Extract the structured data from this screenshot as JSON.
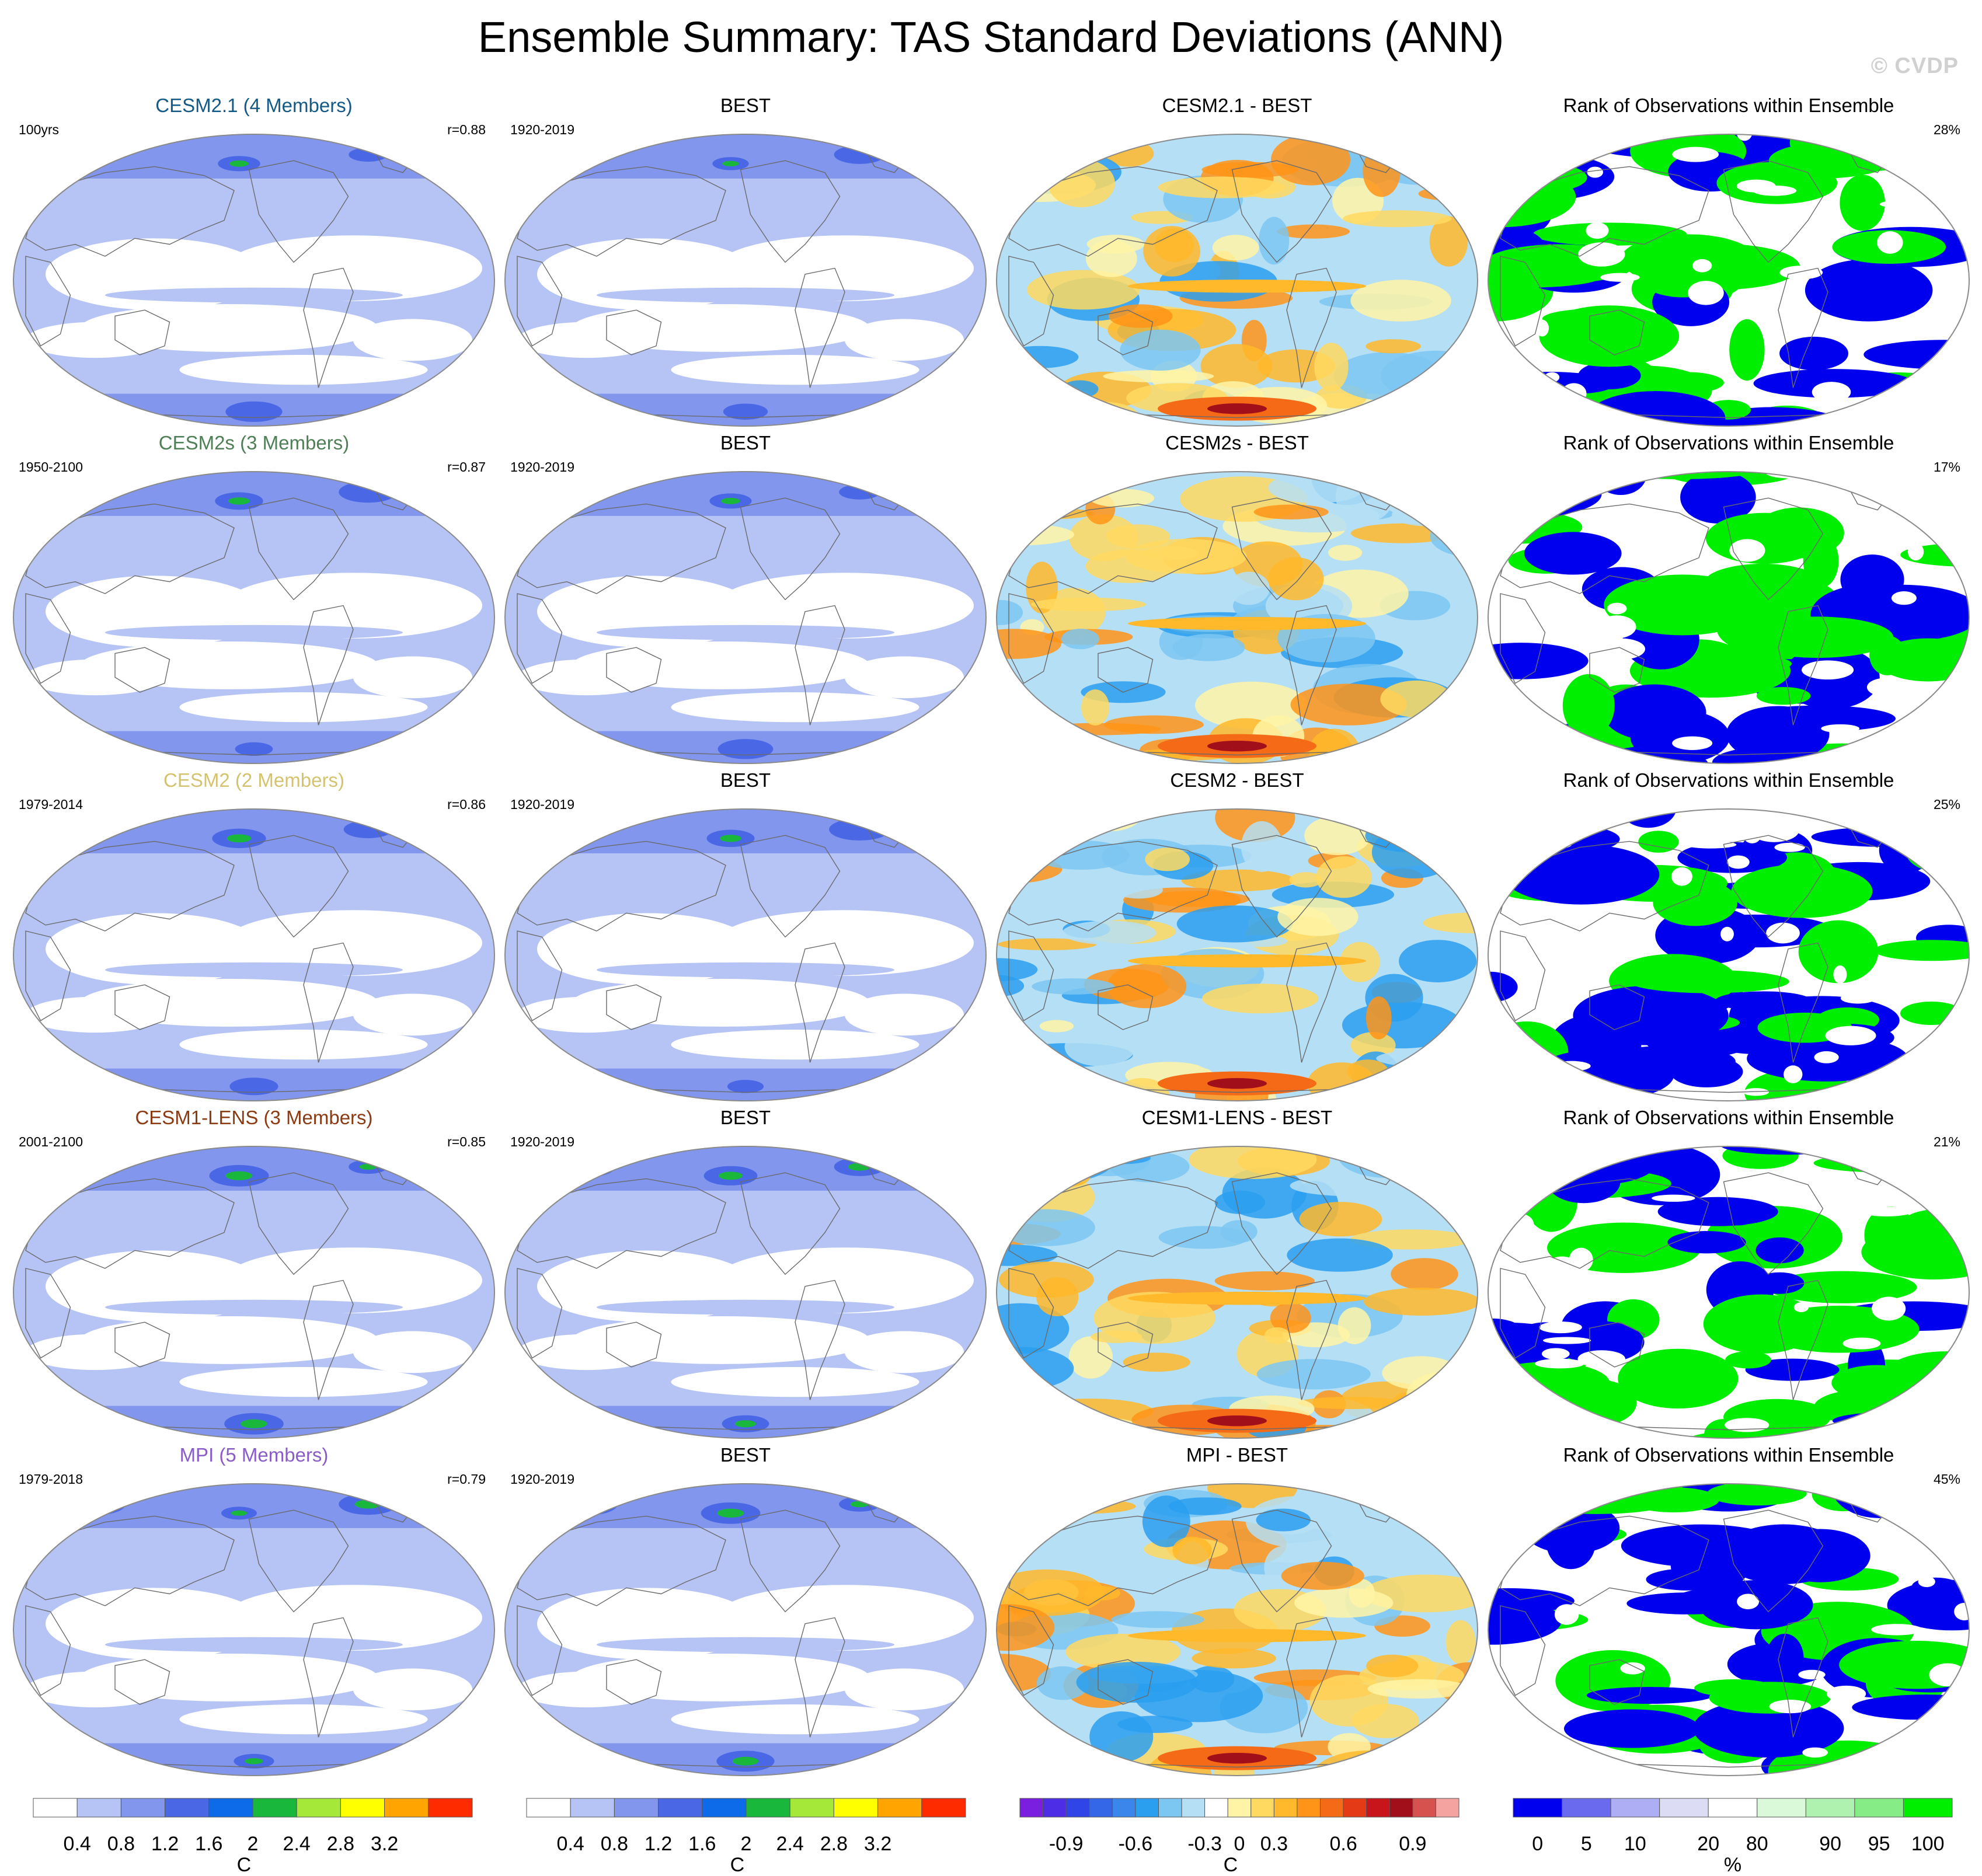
{
  "title": "Ensemble Summary: TAS Standard Deviations (ANN)",
  "watermark": "© CVDP",
  "colors": {
    "std_levels": [
      "#ffffff",
      "#b6c4f5",
      "#8296ee",
      "#4a68e6",
      "#0d6bea",
      "#19b83c",
      "#a6e83a",
      "#ffff00",
      "#ffa400",
      "#ff2b00"
    ],
    "diff_levels": [
      "#7a1fe0",
      "#4d2ee6",
      "#2f45e8",
      "#3466e8",
      "#3b86ea",
      "#2a9ff0",
      "#7cc7f2",
      "#b5dff5",
      "#ffffff",
      "#fff4a6",
      "#ffd960",
      "#ffb92a",
      "#ff9418",
      "#f56a16",
      "#e43a15",
      "#c8151c",
      "#a10f1a",
      "#d6524e",
      "#f5a3a0"
    ],
    "rank_levels": [
      "#0000ee",
      "#6a6aee",
      "#aeaef5",
      "#dcdcf5",
      "#ffffff",
      "#d9f9d9",
      "#aff2af",
      "#86ec86",
      "#00ee00"
    ]
  },
  "rows": [
    {
      "model": {
        "title": "CESM2.1 (4 Members)",
        "title_color": "#145a86",
        "years": "100yrs",
        "r": "r=0.88"
      },
      "obs": {
        "title": "BEST",
        "years": "1920-2019"
      },
      "diff": {
        "title": "CESM2.1 - BEST"
      },
      "rank": {
        "title": "Rank of Observations within Ensemble",
        "pct": "28%"
      }
    },
    {
      "model": {
        "title": "CESM2s (3 Members)",
        "title_color": "#4f7f56",
        "years": "1950-2100",
        "r": "r=0.87"
      },
      "obs": {
        "title": "BEST",
        "years": "1920-2019"
      },
      "diff": {
        "title": "CESM2s - BEST"
      },
      "rank": {
        "title": "Rank of Observations within Ensemble",
        "pct": "17%"
      }
    },
    {
      "model": {
        "title": "CESM2 (2 Members)",
        "title_color": "#d4c36e",
        "years": "1979-2014",
        "r": "r=0.86"
      },
      "obs": {
        "title": "BEST",
        "years": "1920-2019"
      },
      "diff": {
        "title": "CESM2 - BEST"
      },
      "rank": {
        "title": "Rank of Observations within Ensemble",
        "pct": "25%"
      }
    },
    {
      "model": {
        "title": "CESM1-LENS (3 Members)",
        "title_color": "#8b3a12",
        "years": "2001-2100",
        "r": "r=0.85"
      },
      "obs": {
        "title": "BEST",
        "years": "1920-2019"
      },
      "diff": {
        "title": "CESM1-LENS - BEST"
      },
      "rank": {
        "title": "Rank of Observations within Ensemble",
        "pct": "21%"
      }
    },
    {
      "model": {
        "title": "MPI (5 Members)",
        "title_color": "#8a5cc8",
        "years": "1979-2018",
        "r": "r=0.79"
      },
      "obs": {
        "title": "BEST",
        "years": "1920-2019"
      },
      "diff": {
        "title": "MPI - BEST"
      },
      "rank": {
        "title": "Rank of Observations within Ensemble",
        "pct": "45%"
      }
    }
  ],
  "colorbars": [
    {
      "kind": "std",
      "labels": [
        "0.4",
        "0.8",
        "1.2",
        "1.6",
        "2",
        "2.4",
        "2.8",
        "3.2"
      ],
      "unit": "C"
    },
    {
      "kind": "std",
      "labels": [
        "0.4",
        "0.8",
        "1.2",
        "1.6",
        "2",
        "2.4",
        "2.8",
        "3.2"
      ],
      "unit": "C"
    },
    {
      "kind": "diff",
      "labels": [
        "-0.9",
        "-0.6",
        "-0.3",
        "0",
        "0.3",
        "0.6",
        "0.9"
      ],
      "unit": "C"
    },
    {
      "kind": "rank",
      "labels": [
        "0",
        "5",
        "10",
        "20",
        "80",
        "90",
        "95",
        "100"
      ],
      "unit": "%"
    }
  ]
}
